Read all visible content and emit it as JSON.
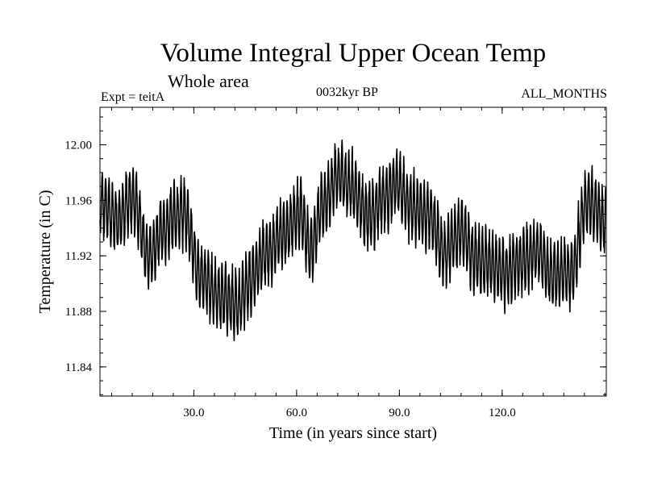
{
  "header": {
    "title": "Volume Integral Upper Ocean Temp",
    "subtitle": "Whole area",
    "expt_label": "Expt = teitA",
    "center_label": "0032kyr BP",
    "months_label": "ALL_MONTHS"
  },
  "chart_data": {
    "type": "line",
    "title": "Volume Integral Upper Ocean Temp",
    "subtitle": "Whole area",
    "xlabel": "Time (in years since start)",
    "ylabel": "Temperature (in C)",
    "xlim": [
      2.6,
      150.4
    ],
    "ylim": [
      11.819,
      12.027
    ],
    "xticks": [
      30,
      60,
      90,
      120
    ],
    "xtick_labels": [
      "30.0",
      "60.0",
      "90.0",
      "120.0"
    ],
    "yticks": [
      11.84,
      11.88,
      11.92,
      11.96,
      12.0
    ],
    "ytick_labels": [
      "11.84",
      "11.88",
      "11.92",
      "11.96",
      "12.00"
    ],
    "samples_per_year": 12,
    "annual_amplitude": 0.022,
    "series": [
      {
        "name": "Volume Integral Upper Ocean Temp",
        "description": "monthly series: smooth trend (interpolated from the anchor points below) plus a seasonal cycle of the stated amplitude",
        "trend_x": [
          3,
          8,
          12,
          17,
          21,
          24,
          27,
          32,
          38,
          43,
          46,
          51,
          56,
          61,
          64,
          68,
          72,
          76,
          81,
          86,
          89,
          94,
          99,
          103,
          108,
          112,
          116,
          121,
          125,
          130,
          135,
          140,
          145,
          150
        ],
        "trend_y": [
          11.958,
          11.946,
          11.962,
          11.92,
          11.938,
          11.948,
          11.952,
          11.905,
          11.89,
          11.885,
          11.9,
          11.922,
          11.935,
          11.952,
          11.925,
          11.958,
          11.978,
          11.97,
          11.948,
          11.962,
          11.972,
          11.955,
          11.948,
          11.922,
          11.938,
          11.918,
          11.915,
          11.908,
          11.915,
          11.922,
          11.905,
          11.908,
          11.96,
          11.945
        ]
      }
    ]
  }
}
